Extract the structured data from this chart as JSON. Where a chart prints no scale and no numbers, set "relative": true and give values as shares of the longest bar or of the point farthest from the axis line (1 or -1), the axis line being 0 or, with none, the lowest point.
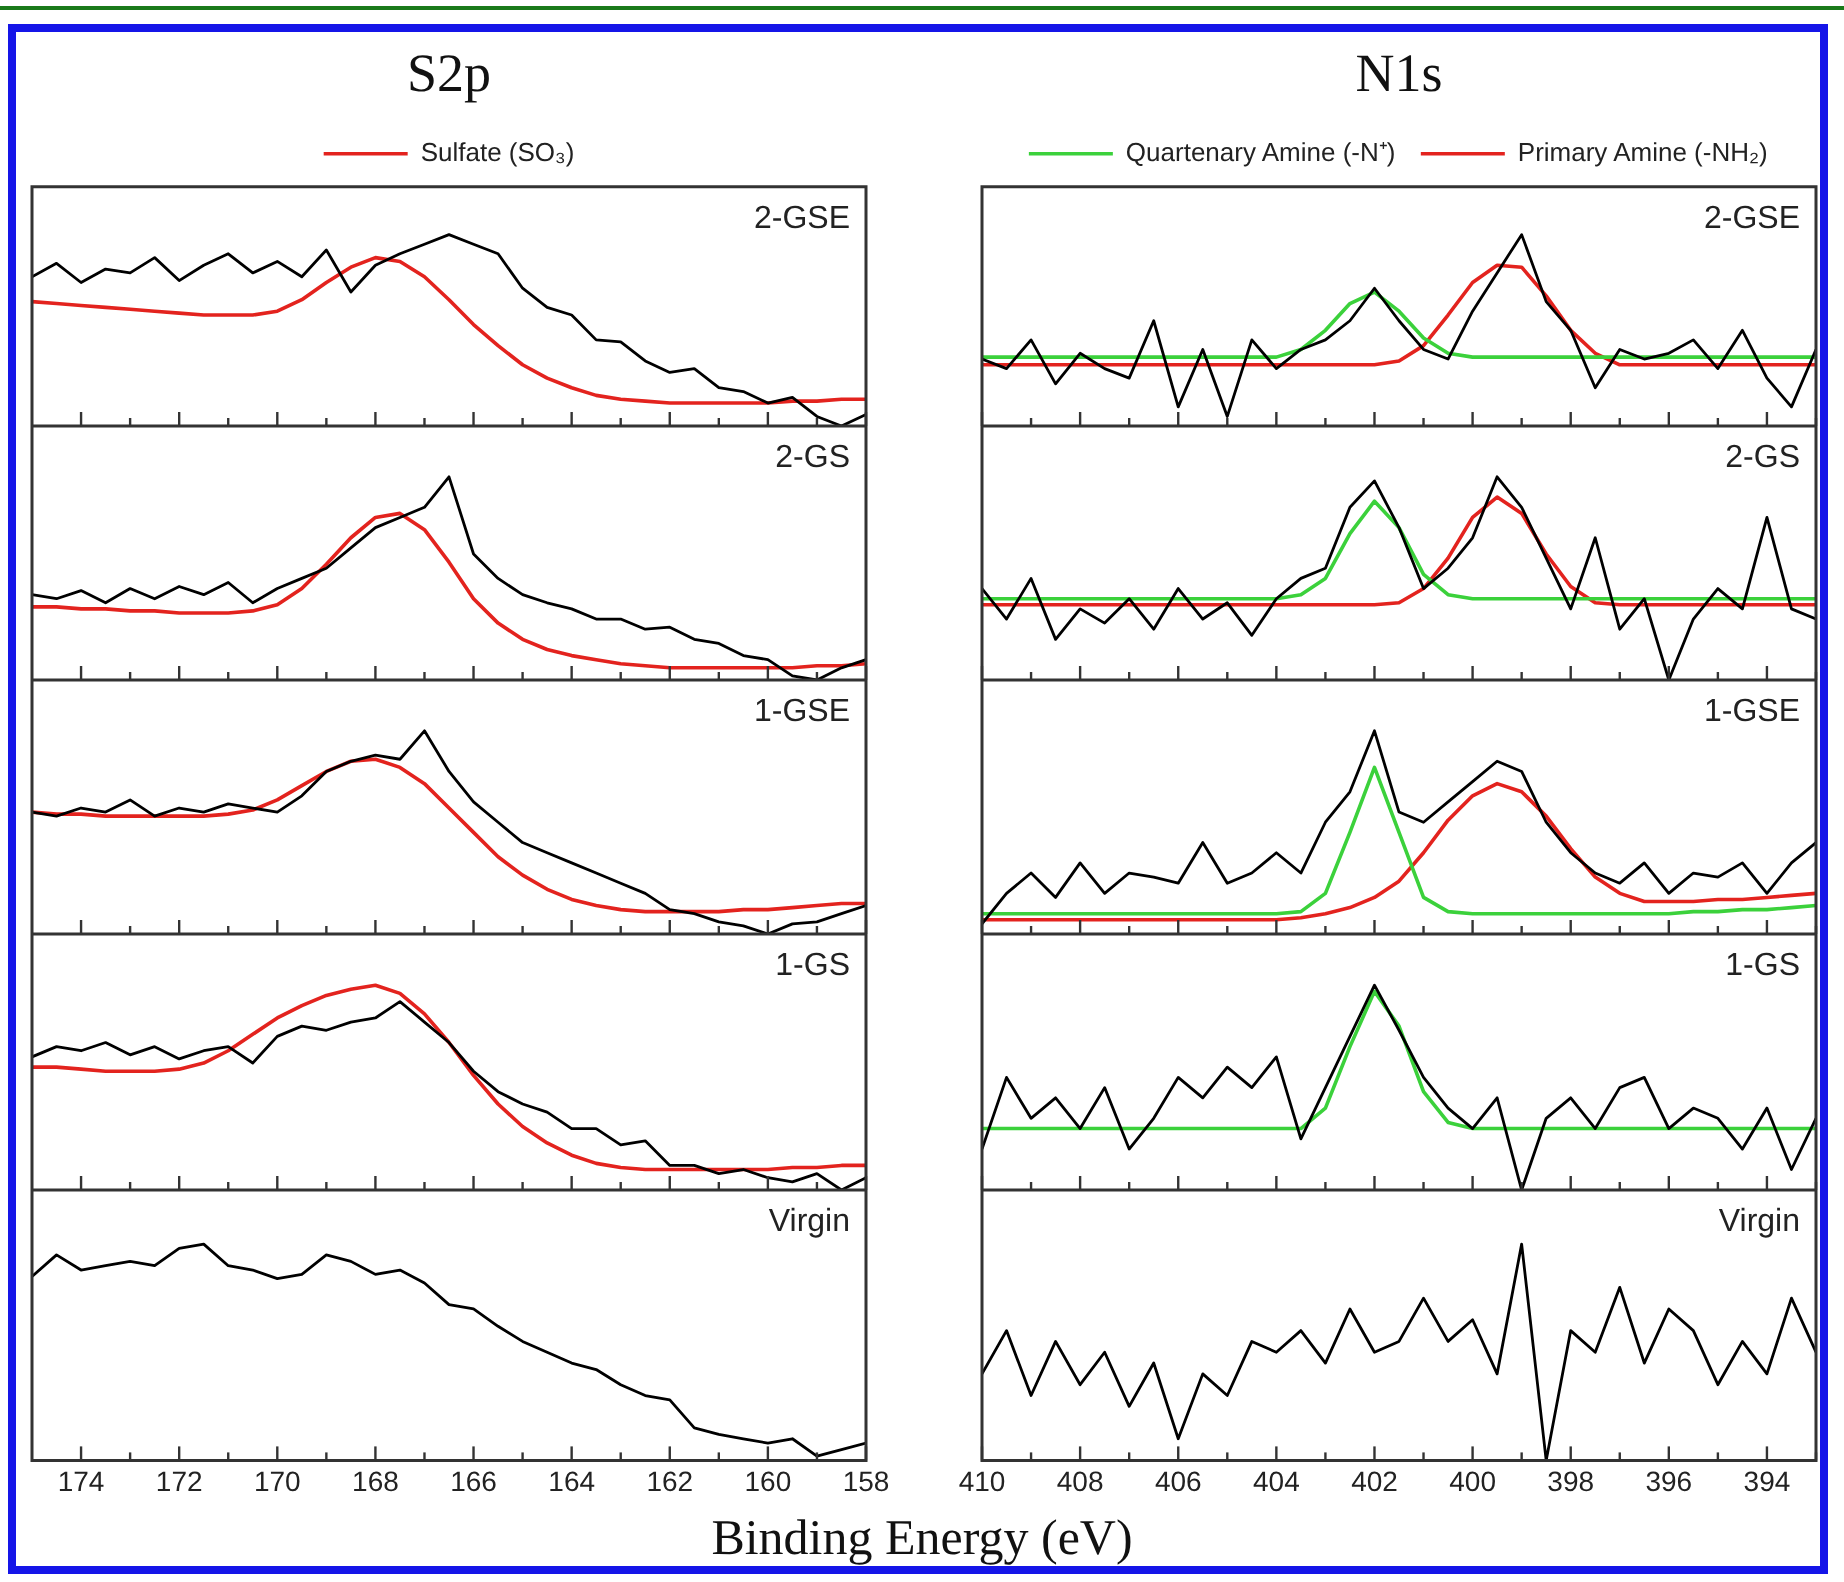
{
  "chart_data": [
    {
      "type": "line",
      "title": "S2p",
      "relative": true,
      "legend": "top",
      "marker": "none",
      "tick_labels": false,
      "xlim": [
        175,
        158
      ],
      "annotations": [
        "2-GSE"
      ],
      "xticks": [
        174,
        {
          "value": 173,
          "label": null
        },
        172,
        {
          "value": 171,
          "label": null
        },
        170,
        {
          "value": 169,
          "label": null
        },
        168,
        {
          "value": 167,
          "label": null
        },
        166,
        {
          "value": 165,
          "label": null
        },
        164,
        {
          "value": 163,
          "label": null
        },
        162,
        {
          "value": 161,
          "label": null
        },
        160,
        {
          "value": 159,
          "label": null
        },
        158
      ],
      "x": [
        175,
        174.5,
        174,
        173.5,
        173,
        172.5,
        172,
        171.5,
        171,
        170.5,
        170,
        169.5,
        169,
        168.5,
        168,
        167.5,
        167,
        166.5,
        166,
        165.5,
        165,
        164.5,
        164,
        163.5,
        163,
        162.5,
        162,
        161.5,
        161,
        160.5,
        160,
        159.5,
        159,
        158.5,
        158
      ],
      "series": [
        {
          "color": "#000000",
          "values": [
            0.78,
            0.85,
            0.75,
            0.82,
            0.8,
            0.88,
            0.76,
            0.84,
            0.9,
            0.8,
            0.86,
            0.78,
            0.92,
            0.7,
            0.84,
            0.9,
            0.95,
            1.0,
            0.95,
            0.9,
            0.72,
            0.62,
            0.58,
            0.45,
            0.44,
            0.34,
            0.28,
            0.3,
            0.2,
            0.18,
            0.12,
            0.15,
            0.05,
            0.0,
            0.06
          ]
        },
        {
          "name": "Sulfate (SO₃)",
          "color": "#e3231e",
          "values": [
            0.65,
            0.64,
            0.63,
            0.62,
            0.61,
            0.6,
            0.59,
            0.58,
            0.58,
            0.58,
            0.6,
            0.66,
            0.75,
            0.83,
            0.88,
            0.86,
            0.78,
            0.66,
            0.53,
            0.42,
            0.32,
            0.25,
            0.2,
            0.16,
            0.14,
            0.13,
            0.12,
            0.12,
            0.12,
            0.12,
            0.12,
            0.13,
            0.13,
            0.14,
            0.14
          ]
        }
      ]
    },
    {
      "type": "line",
      "title": "N1s",
      "relative": true,
      "legend": "top",
      "marker": "none",
      "tick_labels": false,
      "xlim": [
        410,
        393
      ],
      "annotations": [
        "2-GSE"
      ],
      "xticks": [
        410,
        {
          "value": 409,
          "label": null
        },
        408,
        {
          "value": 407,
          "label": null
        },
        406,
        {
          "value": 405,
          "label": null
        },
        404,
        {
          "value": 403,
          "label": null
        },
        402,
        {
          "value": 401,
          "label": null
        },
        400,
        {
          "value": 399,
          "label": null
        },
        398,
        {
          "value": 397,
          "label": null
        },
        396,
        {
          "value": 395,
          "label": null
        },
        394,
        {
          "value": 393,
          "label": null
        }
      ],
      "x": [
        410,
        409.5,
        409,
        408.5,
        408,
        407.5,
        407,
        406.5,
        406,
        405.5,
        405,
        404.5,
        404,
        403.5,
        403,
        402.5,
        402,
        401.5,
        401,
        400.5,
        400,
        399.5,
        399,
        398.5,
        398,
        397.5,
        397,
        396.5,
        396,
        395.5,
        395,
        394.5,
        394,
        393.5,
        393
      ],
      "series": [
        {
          "color": "#000000",
          "values": [
            0.35,
            0.3,
            0.45,
            0.22,
            0.38,
            0.3,
            0.25,
            0.55,
            0.1,
            0.4,
            0.05,
            0.45,
            0.3,
            0.4,
            0.45,
            0.55,
            0.72,
            0.55,
            0.4,
            0.35,
            0.6,
            0.8,
            1.0,
            0.65,
            0.5,
            0.2,
            0.4,
            0.35,
            0.38,
            0.45,
            0.3,
            0.5,
            0.25,
            0.1,
            0.4
          ]
        },
        {
          "name": "Primary Amine (-NH₂)",
          "color": "#e3231e",
          "values": [
            0.32,
            0.32,
            0.32,
            0.32,
            0.32,
            0.32,
            0.32,
            0.32,
            0.32,
            0.32,
            0.32,
            0.32,
            0.32,
            0.32,
            0.32,
            0.32,
            0.32,
            0.34,
            0.42,
            0.58,
            0.75,
            0.84,
            0.83,
            0.68,
            0.5,
            0.38,
            0.32,
            0.32,
            0.32,
            0.32,
            0.32,
            0.32,
            0.32,
            0.32,
            0.32
          ]
        },
        {
          "name": "Quartenary Amine (-N⁺)",
          "color": "#3bd13b",
          "values": [
            0.36,
            0.36,
            0.36,
            0.36,
            0.36,
            0.36,
            0.36,
            0.36,
            0.36,
            0.36,
            0.36,
            0.36,
            0.36,
            0.4,
            0.5,
            0.64,
            0.7,
            0.6,
            0.46,
            0.38,
            0.36,
            0.36,
            0.36,
            0.36,
            0.36,
            0.36,
            0.36,
            0.36,
            0.36,
            0.36,
            0.36,
            0.36,
            0.36,
            0.36,
            0.36
          ]
        }
      ]
    },
    {
      "type": "line",
      "relative": true,
      "marker": "none",
      "tick_labels": false,
      "xlim": [
        175,
        158
      ],
      "annotations": [
        "2-GS"
      ],
      "xticks": [
        174,
        {
          "value": 173,
          "label": null
        },
        172,
        {
          "value": 171,
          "label": null
        },
        170,
        {
          "value": 169,
          "label": null
        },
        168,
        {
          "value": 167,
          "label": null
        },
        166,
        {
          "value": 165,
          "label": null
        },
        164,
        {
          "value": 163,
          "label": null
        },
        162,
        {
          "value": 161,
          "label": null
        },
        160,
        {
          "value": 159,
          "label": null
        },
        158
      ],
      "x": [
        175,
        174.5,
        174,
        173.5,
        173,
        172.5,
        172,
        171.5,
        171,
        170.5,
        170,
        169.5,
        169,
        168.5,
        168,
        167.5,
        167,
        166.5,
        166,
        165.5,
        165,
        164.5,
        164,
        163.5,
        163,
        162.5,
        162,
        161.5,
        161,
        160.5,
        160,
        159.5,
        159,
        158.5,
        158
      ],
      "series": [
        {
          "color": "#000000",
          "values": [
            0.42,
            0.4,
            0.44,
            0.38,
            0.45,
            0.4,
            0.46,
            0.42,
            0.48,
            0.38,
            0.45,
            0.5,
            0.55,
            0.65,
            0.75,
            0.8,
            0.85,
            1.0,
            0.62,
            0.5,
            0.42,
            0.38,
            0.35,
            0.3,
            0.3,
            0.25,
            0.26,
            0.2,
            0.18,
            0.12,
            0.1,
            0.02,
            0.0,
            0.06,
            0.1
          ]
        },
        {
          "color": "#e3231e",
          "values": [
            0.36,
            0.36,
            0.35,
            0.35,
            0.34,
            0.34,
            0.33,
            0.33,
            0.33,
            0.34,
            0.37,
            0.45,
            0.57,
            0.7,
            0.8,
            0.82,
            0.74,
            0.58,
            0.4,
            0.28,
            0.2,
            0.15,
            0.12,
            0.1,
            0.08,
            0.07,
            0.06,
            0.06,
            0.06,
            0.06,
            0.06,
            0.06,
            0.07,
            0.07,
            0.08
          ]
        }
      ]
    },
    {
      "type": "line",
      "relative": true,
      "marker": "none",
      "tick_labels": false,
      "xlim": [
        410,
        393
      ],
      "annotations": [
        "2-GS"
      ],
      "xticks": [
        410,
        {
          "value": 409,
          "label": null
        },
        408,
        {
          "value": 407,
          "label": null
        },
        406,
        {
          "value": 405,
          "label": null
        },
        404,
        {
          "value": 403,
          "label": null
        },
        402,
        {
          "value": 401,
          "label": null
        },
        400,
        {
          "value": 399,
          "label": null
        },
        398,
        {
          "value": 397,
          "label": null
        },
        396,
        {
          "value": 395,
          "label": null
        },
        394,
        {
          "value": 393,
          "label": null
        }
      ],
      "x": [
        410,
        409.5,
        409,
        408.5,
        408,
        407.5,
        407,
        406.5,
        406,
        405.5,
        405,
        404.5,
        404,
        403.5,
        403,
        402.5,
        402,
        401.5,
        401,
        400.5,
        400,
        399.5,
        399,
        398.5,
        398,
        397.5,
        397,
        396.5,
        396,
        395.5,
        395,
        394.5,
        394,
        393.5,
        393
      ],
      "series": [
        {
          "color": "#000000",
          "values": [
            0.45,
            0.3,
            0.5,
            0.2,
            0.35,
            0.28,
            0.4,
            0.25,
            0.45,
            0.3,
            0.38,
            0.22,
            0.4,
            0.5,
            0.55,
            0.85,
            0.98,
            0.75,
            0.45,
            0.55,
            0.7,
            1.0,
            0.85,
            0.6,
            0.35,
            0.7,
            0.25,
            0.4,
            0.0,
            0.3,
            0.45,
            0.35,
            0.8,
            0.35,
            0.3
          ]
        },
        {
          "color": "#e3231e",
          "values": [
            0.37,
            0.37,
            0.37,
            0.37,
            0.37,
            0.37,
            0.37,
            0.37,
            0.37,
            0.37,
            0.37,
            0.37,
            0.37,
            0.37,
            0.37,
            0.37,
            0.37,
            0.38,
            0.45,
            0.6,
            0.8,
            0.9,
            0.82,
            0.62,
            0.46,
            0.38,
            0.37,
            0.37,
            0.37,
            0.37,
            0.37,
            0.37,
            0.37,
            0.37,
            0.37
          ]
        },
        {
          "color": "#3bd13b",
          "values": [
            0.4,
            0.4,
            0.4,
            0.4,
            0.4,
            0.4,
            0.4,
            0.4,
            0.4,
            0.4,
            0.4,
            0.4,
            0.4,
            0.42,
            0.5,
            0.72,
            0.88,
            0.75,
            0.52,
            0.42,
            0.4,
            0.4,
            0.4,
            0.4,
            0.4,
            0.4,
            0.4,
            0.4,
            0.4,
            0.4,
            0.4,
            0.4,
            0.4,
            0.4,
            0.4
          ]
        }
      ]
    },
    {
      "type": "line",
      "relative": true,
      "marker": "none",
      "tick_labels": false,
      "xlim": [
        175,
        158
      ],
      "annotations": [
        "1-GSE"
      ],
      "xticks": [
        174,
        {
          "value": 173,
          "label": null
        },
        172,
        {
          "value": 171,
          "label": null
        },
        170,
        {
          "value": 169,
          "label": null
        },
        168,
        {
          "value": 167,
          "label": null
        },
        166,
        {
          "value": 165,
          "label": null
        },
        164,
        {
          "value": 163,
          "label": null
        },
        162,
        {
          "value": 161,
          "label": null
        },
        160,
        {
          "value": 159,
          "label": null
        },
        158
      ],
      "x": [
        175,
        174.5,
        174,
        173.5,
        173,
        172.5,
        172,
        171.5,
        171,
        170.5,
        170,
        169.5,
        169,
        168.5,
        168,
        167.5,
        167,
        166.5,
        166,
        165.5,
        165,
        164.5,
        164,
        163.5,
        163,
        162.5,
        162,
        161.5,
        161,
        160.5,
        160,
        159.5,
        159,
        158.5,
        158
      ],
      "series": [
        {
          "color": "#000000",
          "values": [
            0.6,
            0.58,
            0.62,
            0.6,
            0.66,
            0.58,
            0.62,
            0.6,
            0.64,
            0.62,
            0.6,
            0.68,
            0.8,
            0.85,
            0.88,
            0.86,
            1.0,
            0.8,
            0.65,
            0.55,
            0.45,
            0.4,
            0.35,
            0.3,
            0.25,
            0.2,
            0.12,
            0.1,
            0.06,
            0.04,
            0.0,
            0.05,
            0.06,
            0.1,
            0.14
          ]
        },
        {
          "color": "#e3231e",
          "values": [
            0.6,
            0.59,
            0.59,
            0.58,
            0.58,
            0.58,
            0.58,
            0.58,
            0.59,
            0.61,
            0.66,
            0.73,
            0.8,
            0.85,
            0.86,
            0.82,
            0.74,
            0.62,
            0.5,
            0.38,
            0.29,
            0.22,
            0.17,
            0.14,
            0.12,
            0.11,
            0.11,
            0.11,
            0.11,
            0.12,
            0.12,
            0.13,
            0.14,
            0.15,
            0.15
          ]
        }
      ]
    },
    {
      "type": "line",
      "relative": true,
      "marker": "none",
      "tick_labels": false,
      "xlim": [
        410,
        393
      ],
      "annotations": [
        "1-GSE"
      ],
      "xticks": [
        410,
        {
          "value": 409,
          "label": null
        },
        408,
        {
          "value": 407,
          "label": null
        },
        406,
        {
          "value": 405,
          "label": null
        },
        404,
        {
          "value": 403,
          "label": null
        },
        402,
        {
          "value": 401,
          "label": null
        },
        400,
        {
          "value": 399,
          "label": null
        },
        398,
        {
          "value": 397,
          "label": null
        },
        396,
        {
          "value": 395,
          "label": null
        },
        394,
        {
          "value": 393,
          "label": null
        }
      ],
      "x": [
        410,
        409.5,
        409,
        408.5,
        408,
        407.5,
        407,
        406.5,
        406,
        405.5,
        405,
        404.5,
        404,
        403.5,
        403,
        402.5,
        402,
        401.5,
        401,
        400.5,
        400,
        399.5,
        399,
        398.5,
        398,
        397.5,
        397,
        396.5,
        396,
        395.5,
        395,
        394.5,
        394,
        393.5,
        393
      ],
      "series": [
        {
          "color": "#000000",
          "values": [
            0.05,
            0.2,
            0.3,
            0.18,
            0.35,
            0.2,
            0.3,
            0.28,
            0.25,
            0.45,
            0.25,
            0.3,
            0.4,
            0.3,
            0.55,
            0.7,
            1.0,
            0.6,
            0.55,
            0.65,
            0.75,
            0.85,
            0.8,
            0.55,
            0.4,
            0.3,
            0.25,
            0.35,
            0.2,
            0.3,
            0.28,
            0.35,
            0.2,
            0.35,
            0.45
          ]
        },
        {
          "color": "#e3231e",
          "values": [
            0.07,
            0.07,
            0.07,
            0.07,
            0.07,
            0.07,
            0.07,
            0.07,
            0.07,
            0.07,
            0.07,
            0.07,
            0.07,
            0.08,
            0.1,
            0.13,
            0.18,
            0.26,
            0.4,
            0.56,
            0.68,
            0.74,
            0.7,
            0.58,
            0.42,
            0.28,
            0.2,
            0.16,
            0.16,
            0.16,
            0.17,
            0.17,
            0.18,
            0.19,
            0.2
          ]
        },
        {
          "color": "#3bd13b",
          "values": [
            0.1,
            0.1,
            0.1,
            0.1,
            0.1,
            0.1,
            0.1,
            0.1,
            0.1,
            0.1,
            0.1,
            0.1,
            0.1,
            0.11,
            0.2,
            0.5,
            0.82,
            0.5,
            0.18,
            0.11,
            0.1,
            0.1,
            0.1,
            0.1,
            0.1,
            0.1,
            0.1,
            0.1,
            0.1,
            0.11,
            0.11,
            0.12,
            0.12,
            0.13,
            0.14
          ]
        }
      ]
    },
    {
      "type": "line",
      "relative": true,
      "marker": "none",
      "tick_labels": false,
      "xlim": [
        175,
        158
      ],
      "annotations": [
        "1-GS"
      ],
      "xticks": [
        174,
        {
          "value": 173,
          "label": null
        },
        172,
        {
          "value": 171,
          "label": null
        },
        170,
        {
          "value": 169,
          "label": null
        },
        168,
        {
          "value": 167,
          "label": null
        },
        166,
        {
          "value": 165,
          "label": null
        },
        164,
        {
          "value": 163,
          "label": null
        },
        162,
        {
          "value": 161,
          "label": null
        },
        160,
        {
          "value": 159,
          "label": null
        },
        158
      ],
      "x": [
        175,
        174.5,
        174,
        173.5,
        173,
        172.5,
        172,
        171.5,
        171,
        170.5,
        170,
        169.5,
        169,
        168.5,
        168,
        167.5,
        167,
        166.5,
        166,
        165.5,
        165,
        164.5,
        164,
        163.5,
        163,
        162.5,
        162,
        161.5,
        161,
        160.5,
        160,
        159.5,
        159,
        158.5,
        158
      ],
      "series": [
        {
          "color": "#000000",
          "values": [
            0.65,
            0.7,
            0.68,
            0.72,
            0.66,
            0.7,
            0.64,
            0.68,
            0.7,
            0.62,
            0.75,
            0.8,
            0.78,
            0.82,
            0.84,
            0.92,
            0.82,
            0.72,
            0.58,
            0.48,
            0.42,
            0.38,
            0.3,
            0.3,
            0.22,
            0.24,
            0.12,
            0.12,
            0.08,
            0.1,
            0.06,
            0.04,
            0.08,
            0.0,
            0.06
          ]
        },
        {
          "color": "#e3231e",
          "values": [
            0.6,
            0.6,
            0.59,
            0.58,
            0.58,
            0.58,
            0.59,
            0.62,
            0.68,
            0.76,
            0.84,
            0.9,
            0.95,
            0.98,
            1.0,
            0.96,
            0.86,
            0.72,
            0.56,
            0.42,
            0.31,
            0.23,
            0.17,
            0.13,
            0.11,
            0.1,
            0.1,
            0.1,
            0.1,
            0.1,
            0.1,
            0.11,
            0.11,
            0.12,
            0.12
          ]
        }
      ]
    },
    {
      "type": "line",
      "relative": true,
      "marker": "none",
      "tick_labels": false,
      "xlim": [
        410,
        393
      ],
      "annotations": [
        "1-GS"
      ],
      "xticks": [
        410,
        {
          "value": 409,
          "label": null
        },
        408,
        {
          "value": 407,
          "label": null
        },
        406,
        {
          "value": 405,
          "label": null
        },
        404,
        {
          "value": 403,
          "label": null
        },
        402,
        {
          "value": 401,
          "label": null
        },
        400,
        {
          "value": 399,
          "label": null
        },
        398,
        {
          "value": 397,
          "label": null
        },
        396,
        {
          "value": 395,
          "label": null
        },
        394,
        {
          "value": 393,
          "label": null
        }
      ],
      "x": [
        410,
        409.5,
        409,
        408.5,
        408,
        407.5,
        407,
        406.5,
        406,
        405.5,
        405,
        404.5,
        404,
        403.5,
        403,
        402.5,
        402,
        401.5,
        401,
        400.5,
        400,
        399.5,
        399,
        398.5,
        398,
        397.5,
        397,
        396.5,
        396,
        395.5,
        395,
        394.5,
        394,
        393.5,
        393
      ],
      "series": [
        {
          "color": "#000000",
          "values": [
            0.2,
            0.55,
            0.35,
            0.45,
            0.3,
            0.5,
            0.2,
            0.35,
            0.55,
            0.45,
            0.6,
            0.5,
            0.65,
            0.25,
            0.5,
            0.75,
            1.0,
            0.78,
            0.55,
            0.4,
            0.3,
            0.45,
            0.0,
            0.35,
            0.45,
            0.3,
            0.5,
            0.55,
            0.3,
            0.4,
            0.35,
            0.2,
            0.4,
            0.1,
            0.35
          ]
        },
        {
          "color": "#3bd13b",
          "values": [
            0.3,
            0.3,
            0.3,
            0.3,
            0.3,
            0.3,
            0.3,
            0.3,
            0.3,
            0.3,
            0.3,
            0.3,
            0.3,
            0.3,
            0.4,
            0.7,
            0.97,
            0.8,
            0.48,
            0.33,
            0.3,
            0.3,
            0.3,
            0.3,
            0.3,
            0.3,
            0.3,
            0.3,
            0.3,
            0.3,
            0.3,
            0.3,
            0.3,
            0.3,
            0.3
          ]
        }
      ]
    },
    {
      "type": "line",
      "relative": true,
      "marker": "none",
      "tick_labels": "x",
      "xlim": [
        175,
        158
      ],
      "annotations": [
        "Virgin"
      ],
      "xticks": [
        174,
        {
          "value": 173,
          "label": null
        },
        172,
        {
          "value": 171,
          "label": null
        },
        170,
        {
          "value": 169,
          "label": null
        },
        168,
        {
          "value": 167,
          "label": null
        },
        166,
        {
          "value": 165,
          "label": null
        },
        164,
        {
          "value": 163,
          "label": null
        },
        162,
        {
          "value": 161,
          "label": null
        },
        160,
        {
          "value": 159,
          "label": null
        },
        158
      ],
      "x": [
        175,
        174.5,
        174,
        173.5,
        173,
        172.5,
        172,
        171.5,
        171,
        170.5,
        170,
        169.5,
        169,
        168.5,
        168,
        167.5,
        167,
        166.5,
        166,
        165.5,
        165,
        164.5,
        164,
        163.5,
        163,
        162.5,
        162,
        161.5,
        161,
        160.5,
        160,
        159.5,
        159,
        158.5,
        158
      ],
      "series": [
        {
          "color": "#000000",
          "values": [
            0.85,
            0.95,
            0.88,
            0.9,
            0.92,
            0.9,
            0.98,
            1.0,
            0.9,
            0.88,
            0.84,
            0.86,
            0.95,
            0.92,
            0.86,
            0.88,
            0.82,
            0.72,
            0.7,
            0.62,
            0.55,
            0.5,
            0.45,
            0.42,
            0.35,
            0.3,
            0.28,
            0.15,
            0.12,
            0.1,
            0.08,
            0.1,
            0.02,
            0.05,
            0.08
          ]
        }
      ]
    },
    {
      "type": "line",
      "relative": true,
      "marker": "none",
      "tick_labels": "x",
      "xlim": [
        410,
        393
      ],
      "annotations": [
        "Virgin"
      ],
      "xlabel": "Binding Energy (eV)",
      "xticks": [
        410,
        {
          "value": 409,
          "label": null
        },
        408,
        {
          "value": 407,
          "label": null
        },
        406,
        {
          "value": 405,
          "label": null
        },
        404,
        {
          "value": 403,
          "label": null
        },
        402,
        {
          "value": 401,
          "label": null
        },
        400,
        {
          "value": 399,
          "label": null
        },
        398,
        {
          "value": 397,
          "label": null
        },
        396,
        {
          "value": 395,
          "label": null
        },
        394,
        {
          "value": 393,
          "label": null
        }
      ],
      "x": [
        410,
        409.5,
        409,
        408.5,
        408,
        407.5,
        407,
        406.5,
        406,
        405.5,
        405,
        404.5,
        404,
        403.5,
        403,
        402.5,
        402,
        401.5,
        401,
        400.5,
        400,
        399.5,
        399,
        398.5,
        398,
        397.5,
        397,
        396.5,
        396,
        395.5,
        395,
        394.5,
        394,
        393.5,
        393
      ],
      "series": [
        {
          "color": "#000000",
          "values": [
            0.4,
            0.6,
            0.3,
            0.55,
            0.35,
            0.5,
            0.25,
            0.45,
            0.1,
            0.4,
            0.3,
            0.55,
            0.5,
            0.6,
            0.45,
            0.7,
            0.5,
            0.55,
            0.75,
            0.55,
            0.65,
            0.4,
            1.0,
            0.0,
            0.6,
            0.5,
            0.8,
            0.45,
            0.7,
            0.6,
            0.35,
            0.55,
            0.4,
            0.75,
            0.5
          ]
        }
      ]
    }
  ]
}
